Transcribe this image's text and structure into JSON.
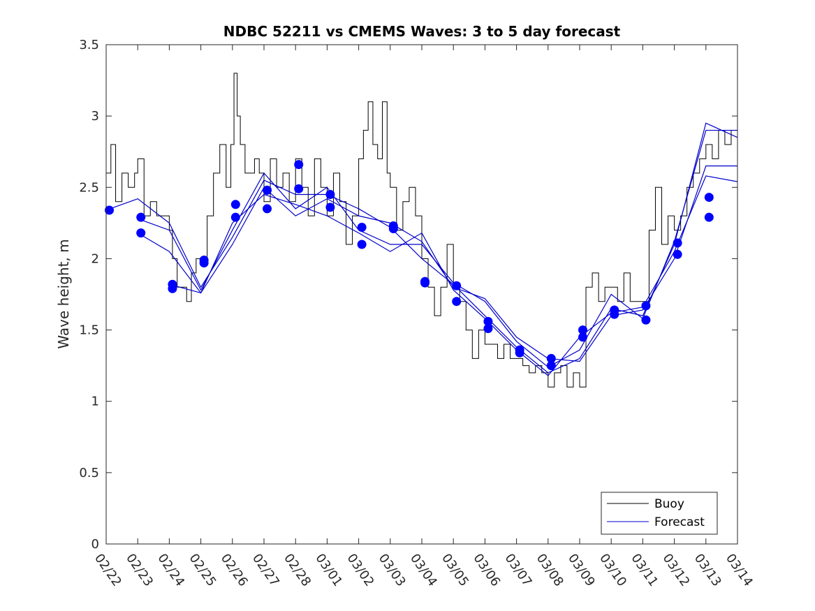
{
  "chart_data": {
    "type": "line",
    "title": "NDBC 52211 vs CMEMS Waves: 3 to 5 day forecast",
    "xlabel": "",
    "ylabel": "Wave height, m",
    "ylim": [
      0,
      3.5
    ],
    "yticks": [
      0,
      0.5,
      1,
      1.5,
      2,
      2.5,
      3,
      3.5
    ],
    "ytick_labels": [
      "0",
      "0.5",
      "1",
      "1.5",
      "2",
      "2.5",
      "3",
      "3.5"
    ],
    "xlim": [
      0,
      20
    ],
    "xtick_labels": [
      "02/22",
      "02/23",
      "02/24",
      "02/25",
      "02/26",
      "02/27",
      "02/28",
      "03/01",
      "03/02",
      "03/03",
      "03/04",
      "03/05",
      "03/06",
      "03/07",
      "03/08",
      "03/09",
      "03/10",
      "03/11",
      "03/12",
      "03/13",
      "03/14"
    ],
    "legend": {
      "position": "bottom-right",
      "entries": [
        {
          "label": "Buoy",
          "color": "#000000"
        },
        {
          "label": "Forecast",
          "color": "#0000cc"
        }
      ]
    },
    "colors": {
      "buoy": "#000000",
      "forecast": "#0000cc",
      "marker": "#0000ff"
    },
    "series": [
      {
        "name": "Buoy",
        "x": [
          0,
          0.15,
          0.3,
          0.5,
          0.7,
          0.9,
          1.0,
          1.2,
          1.4,
          1.6,
          1.8,
          2.0,
          2.1,
          2.25,
          2.4,
          2.55,
          2.7,
          2.85,
          3.0,
          3.2,
          3.4,
          3.6,
          3.8,
          3.95,
          4.05,
          4.15,
          4.25,
          4.4,
          4.55,
          4.7,
          4.85,
          5.0,
          5.2,
          5.4,
          5.6,
          5.8,
          6.0,
          6.2,
          6.4,
          6.6,
          6.8,
          7.0,
          7.2,
          7.4,
          7.6,
          7.8,
          8.0,
          8.15,
          8.3,
          8.45,
          8.6,
          8.75,
          8.9,
          9.0,
          9.2,
          9.4,
          9.6,
          9.8,
          10.0,
          10.2,
          10.4,
          10.6,
          10.8,
          11.0,
          11.2,
          11.4,
          11.6,
          11.8,
          12.0,
          12.2,
          12.4,
          12.6,
          12.8,
          13.0,
          13.2,
          13.4,
          13.6,
          13.8,
          14.0,
          14.2,
          14.4,
          14.6,
          14.8,
          15.0,
          15.2,
          15.4,
          15.6,
          15.8,
          16.0,
          16.2,
          16.4,
          16.6,
          16.8,
          17.0,
          17.2,
          17.4,
          17.6,
          17.8,
          18.0,
          18.2,
          18.4,
          18.6,
          18.8,
          19.0,
          19.2,
          19.4,
          19.6,
          19.8,
          20.0
        ],
        "values": [
          2.6,
          2.8,
          2.4,
          2.6,
          2.5,
          2.6,
          2.7,
          2.3,
          2.4,
          2.3,
          2.3,
          2.2,
          2.0,
          1.8,
          1.8,
          1.7,
          1.9,
          2.0,
          2.0,
          2.3,
          2.6,
          2.8,
          2.5,
          2.8,
          3.3,
          3.0,
          2.8,
          2.6,
          2.6,
          2.7,
          2.6,
          2.4,
          2.7,
          2.5,
          2.6,
          2.4,
          2.7,
          2.5,
          2.3,
          2.7,
          2.5,
          2.3,
          2.6,
          2.4,
          2.1,
          2.3,
          2.7,
          2.9,
          3.1,
          2.8,
          2.7,
          3.1,
          2.6,
          2.5,
          2.2,
          2.4,
          2.5,
          2.3,
          2.0,
          1.8,
          1.6,
          1.8,
          2.1,
          1.8,
          1.7,
          1.5,
          1.3,
          1.5,
          1.4,
          1.4,
          1.3,
          1.4,
          1.3,
          1.3,
          1.25,
          1.2,
          1.25,
          1.2,
          1.1,
          1.2,
          1.25,
          1.1,
          1.2,
          1.1,
          1.8,
          1.9,
          1.7,
          1.8,
          1.8,
          1.7,
          1.9,
          1.7,
          1.7,
          1.7,
          2.2,
          2.5,
          2.1,
          2.3,
          2.2,
          2.3,
          2.5,
          2.6,
          2.7,
          2.8,
          2.7,
          2.9,
          2.8,
          2.9,
          2.9
        ]
      },
      {
        "name": "Forecast run 1",
        "x": [
          0,
          1,
          2,
          3,
          4,
          5,
          6,
          7,
          8,
          9,
          10,
          11,
          12,
          13,
          14,
          15,
          16,
          17,
          18,
          19,
          20
        ],
        "values": [
          2.34,
          2.42,
          2.25,
          1.8,
          2.15,
          2.55,
          2.45,
          2.45,
          2.35,
          2.22,
          2.0,
          1.82,
          1.6,
          1.38,
          1.2,
          1.3,
          1.65,
          1.6,
          2.1,
          2.95,
          2.85
        ]
      },
      {
        "name": "Forecast run 2",
        "x": [
          1,
          2,
          3,
          4,
          5,
          6,
          7,
          8,
          9,
          10,
          11,
          12,
          13,
          14,
          15,
          16,
          17,
          18,
          19,
          20
        ],
        "values": [
          2.28,
          2.2,
          1.78,
          2.2,
          2.6,
          2.35,
          2.5,
          2.2,
          2.1,
          2.1,
          1.83,
          1.7,
          1.42,
          1.24,
          1.36,
          1.75,
          1.58,
          2.12,
          2.9,
          2.9
        ]
      },
      {
        "name": "Forecast run 3",
        "x": [
          1,
          2,
          3,
          4,
          5,
          6,
          7,
          8,
          9,
          10,
          11,
          12,
          13,
          14,
          15,
          16,
          17,
          18,
          19,
          20
        ],
        "values": [
          2.18,
          2.05,
          1.76,
          2.1,
          2.5,
          2.3,
          2.42,
          2.3,
          2.25,
          2.12,
          1.8,
          1.72,
          1.45,
          1.3,
          1.28,
          1.6,
          1.64,
          2.0,
          2.65,
          2.65
        ]
      },
      {
        "name": "Forecast run 4",
        "x": [
          2,
          3,
          4,
          5,
          6,
          7,
          8,
          9,
          10,
          11,
          12,
          13,
          14,
          15,
          16,
          17,
          18,
          19,
          20
        ],
        "values": [
          1.82,
          1.76,
          2.25,
          2.45,
          2.38,
          2.3,
          2.18,
          2.05,
          2.18,
          1.78,
          1.58,
          1.36,
          1.18,
          1.45,
          1.62,
          1.66,
          2.05,
          2.58,
          2.54
        ]
      }
    ],
    "markers": {
      "x": [
        0.1,
        1.1,
        1.1,
        2.1,
        2.1,
        3.1,
        3.1,
        4.1,
        4.1,
        5.1,
        5.1,
        6.1,
        6.1,
        7.1,
        7.1,
        8.1,
        8.1,
        9.1,
        9.1,
        10.1,
        10.1,
        11.1,
        11.1,
        12.1,
        12.1,
        13.1,
        13.1,
        14.1,
        14.1,
        15.1,
        15.1,
        16.1,
        16.1,
        17.1,
        17.1,
        18.1,
        18.1,
        19.1,
        19.1
      ],
      "values": [
        2.34,
        2.29,
        2.18,
        1.82,
        1.79,
        1.99,
        1.97,
        2.38,
        2.29,
        2.48,
        2.35,
        2.66,
        2.49,
        2.45,
        2.36,
        2.22,
        2.1,
        2.23,
        2.21,
        1.84,
        1.83,
        1.81,
        1.7,
        1.56,
        1.51,
        1.36,
        1.34,
        1.3,
        1.25,
        1.5,
        1.45,
        1.64,
        1.61,
        1.67,
        1.57,
        2.11,
        2.03,
        2.43,
        2.29
      ]
    }
  }
}
